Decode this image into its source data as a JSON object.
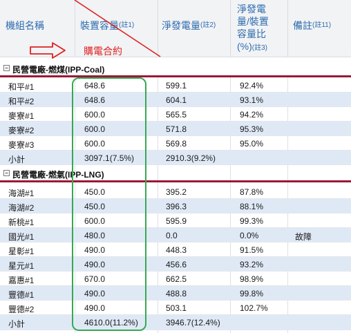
{
  "header": {
    "col_name": "機組名稱",
    "col_capacity": "裝置容量",
    "col_capacity_note": "(註1)",
    "col_net": "淨發電量",
    "col_net_note": "(註2)",
    "col_ratio_line1": "淨發電",
    "col_ratio_line2": "量/裝置",
    "col_ratio_line3": "容量比",
    "col_ratio_line4": "(%)",
    "col_ratio_note": "(註3)",
    "col_remark": "備註",
    "col_remark_note": "(註11)"
  },
  "annotation": {
    "ppa_label": "購電合約",
    "arrow_color": "#e02020",
    "highlight_color": "#36a852"
  },
  "sections": [
    {
      "title": "民營電廠-燃煤(IPP-Coal)",
      "toggle": "⊟",
      "rows": [
        {
          "name": "和平#1",
          "capacity": "648.6",
          "net": "599.1",
          "ratio": "92.4%",
          "remark": ""
        },
        {
          "name": "和平#2",
          "capacity": "648.6",
          "net": "604.1",
          "ratio": "93.1%",
          "remark": ""
        },
        {
          "name": "麥寮#1",
          "capacity": "600.0",
          "net": "565.5",
          "ratio": "94.2%",
          "remark": ""
        },
        {
          "name": "麥寮#2",
          "capacity": "600.0",
          "net": "571.8",
          "ratio": "95.3%",
          "remark": ""
        },
        {
          "name": "麥寮#3",
          "capacity": "600.0",
          "net": "569.8",
          "ratio": "95.0%",
          "remark": ""
        },
        {
          "name": "小計",
          "capacity": "3097.1(7.5%)",
          "net": "2910.3(9.2%)",
          "ratio": "",
          "remark": ""
        }
      ]
    },
    {
      "title": "民營電廠-燃氣(IPP-LNG)",
      "toggle": "⊟",
      "rows": [
        {
          "name": "海湖#1",
          "capacity": "450.0",
          "net": "395.2",
          "ratio": "87.8%",
          "remark": ""
        },
        {
          "name": "海湖#2",
          "capacity": "450.0",
          "net": "396.3",
          "ratio": "88.1%",
          "remark": ""
        },
        {
          "name": "新桃#1",
          "capacity": "600.0",
          "net": "595.9",
          "ratio": "99.3%",
          "remark": ""
        },
        {
          "name": "國光#1",
          "capacity": "480.0",
          "net": "0.0",
          "ratio": "0.0%",
          "remark": "故障"
        },
        {
          "name": "星彰#1",
          "capacity": "490.0",
          "net": "448.3",
          "ratio": "91.5%",
          "remark": ""
        },
        {
          "name": "星元#1",
          "capacity": "490.0",
          "net": "456.6",
          "ratio": "93.2%",
          "remark": ""
        },
        {
          "name": "嘉惠#1",
          "capacity": "670.0",
          "net": "662.5",
          "ratio": "98.9%",
          "remark": ""
        },
        {
          "name": "豐德#1",
          "capacity": "490.0",
          "net": "488.8",
          "ratio": "99.8%",
          "remark": ""
        },
        {
          "name": "豐德#2",
          "capacity": "490.0",
          "net": "503.1",
          "ratio": "102.7%",
          "remark": ""
        },
        {
          "name": "小計",
          "capacity": "4610.0(11.2%)",
          "net": "3946.7(12.4%)",
          "ratio": "",
          "remark": ""
        }
      ]
    }
  ]
}
